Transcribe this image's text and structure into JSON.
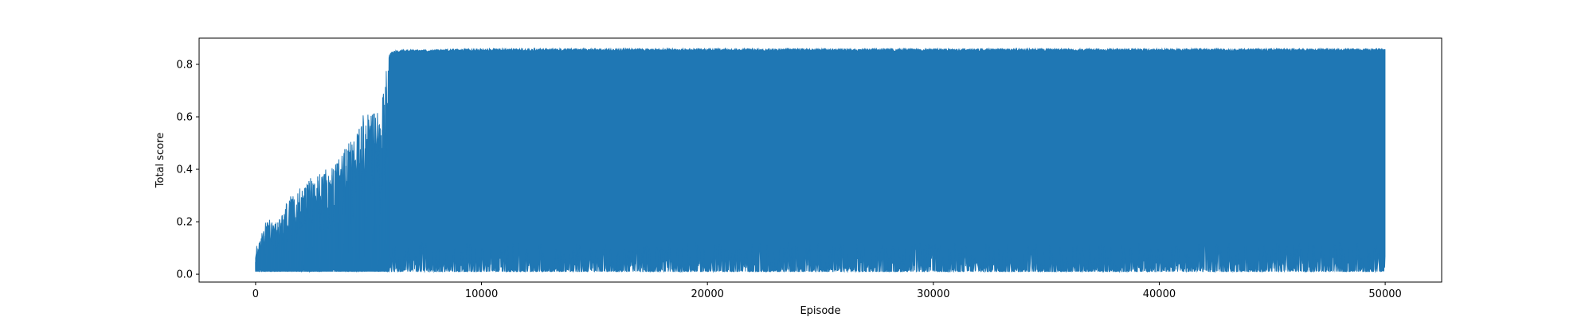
{
  "chart_data": {
    "type": "line",
    "title": "",
    "xlabel": "Episode",
    "ylabel": "Total score",
    "xlim": [
      -2500,
      52500
    ],
    "ylim": [
      -0.03,
      0.9
    ],
    "xticks": [
      0,
      10000,
      20000,
      30000,
      40000,
      50000
    ],
    "yticks": [
      0.0,
      0.2,
      0.4,
      0.6,
      0.8
    ],
    "xtick_labels": [
      "0",
      "10000",
      "20000",
      "30000",
      "40000",
      "50000"
    ],
    "ytick_labels": [
      "0.0",
      "0.2",
      "0.4",
      "0.6",
      "0.8"
    ],
    "grid": false,
    "legend": "none",
    "series_color": "#1f77b4",
    "series": [
      {
        "x_range": [
          0,
          50000
        ],
        "description_points": {
          "x": [
            0,
            500,
            1000,
            1500,
            2000,
            2500,
            3000,
            3500,
            4000,
            4500,
            5000,
            5500,
            5800,
            6000,
            6500,
            10000,
            20000,
            30000,
            40000,
            50000
          ],
          "y_max": [
            0.1,
            0.21,
            0.2,
            0.3,
            0.34,
            0.37,
            0.4,
            0.42,
            0.49,
            0.54,
            0.67,
            0.6,
            0.81,
            0.85,
            0.855,
            0.86,
            0.86,
            0.86,
            0.86,
            0.86
          ],
          "y_min": [
            0.01,
            0.01,
            0.01,
            0.01,
            0.01,
            0.01,
            0.01,
            0.01,
            0.01,
            0.01,
            0.01,
            0.01,
            0.01,
            0.01,
            0.01,
            0.01,
            0.01,
            0.01,
            0.01,
            0.01
          ]
        }
      }
    ]
  }
}
